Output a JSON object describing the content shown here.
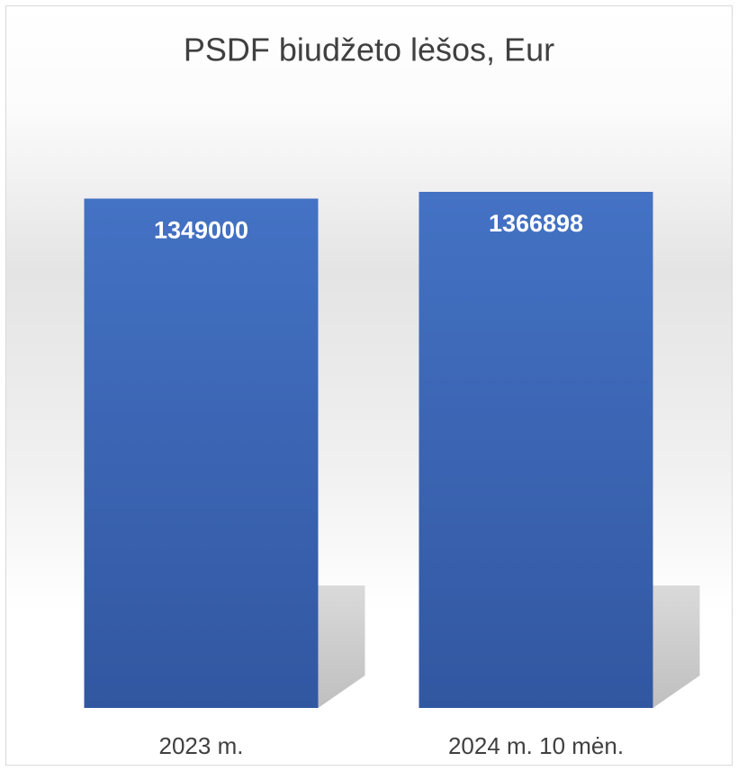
{
  "chart_data": {
    "type": "bar",
    "title": "PSDF biudžeto lėšos, Eur",
    "categories": [
      "2023 m.",
      "2024 m. 10 mėn."
    ],
    "values": [
      1349000,
      1366898
    ],
    "color": "#4472c4"
  }
}
